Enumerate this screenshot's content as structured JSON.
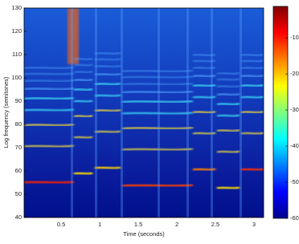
{
  "chart_data": {
    "type": "spectrogram",
    "xlabel": "Time (seconds)",
    "ylabel": "Log frequency (semitones)",
    "xlim": [
      0.02,
      3.125
    ],
    "xticks": [
      0.5,
      1,
      1.5,
      2,
      2.5,
      3
    ],
    "ylim": [
      40,
      130
    ],
    "yticks": [
      40,
      50,
      60,
      70,
      80,
      90,
      100,
      110,
      120,
      130
    ],
    "colorbar": {
      "colormap": "jet",
      "clim": [
        -60,
        -1.3
      ],
      "ticks": [
        -60,
        -50,
        -40,
        -30,
        -20,
        -10
      ]
    }
  }
}
